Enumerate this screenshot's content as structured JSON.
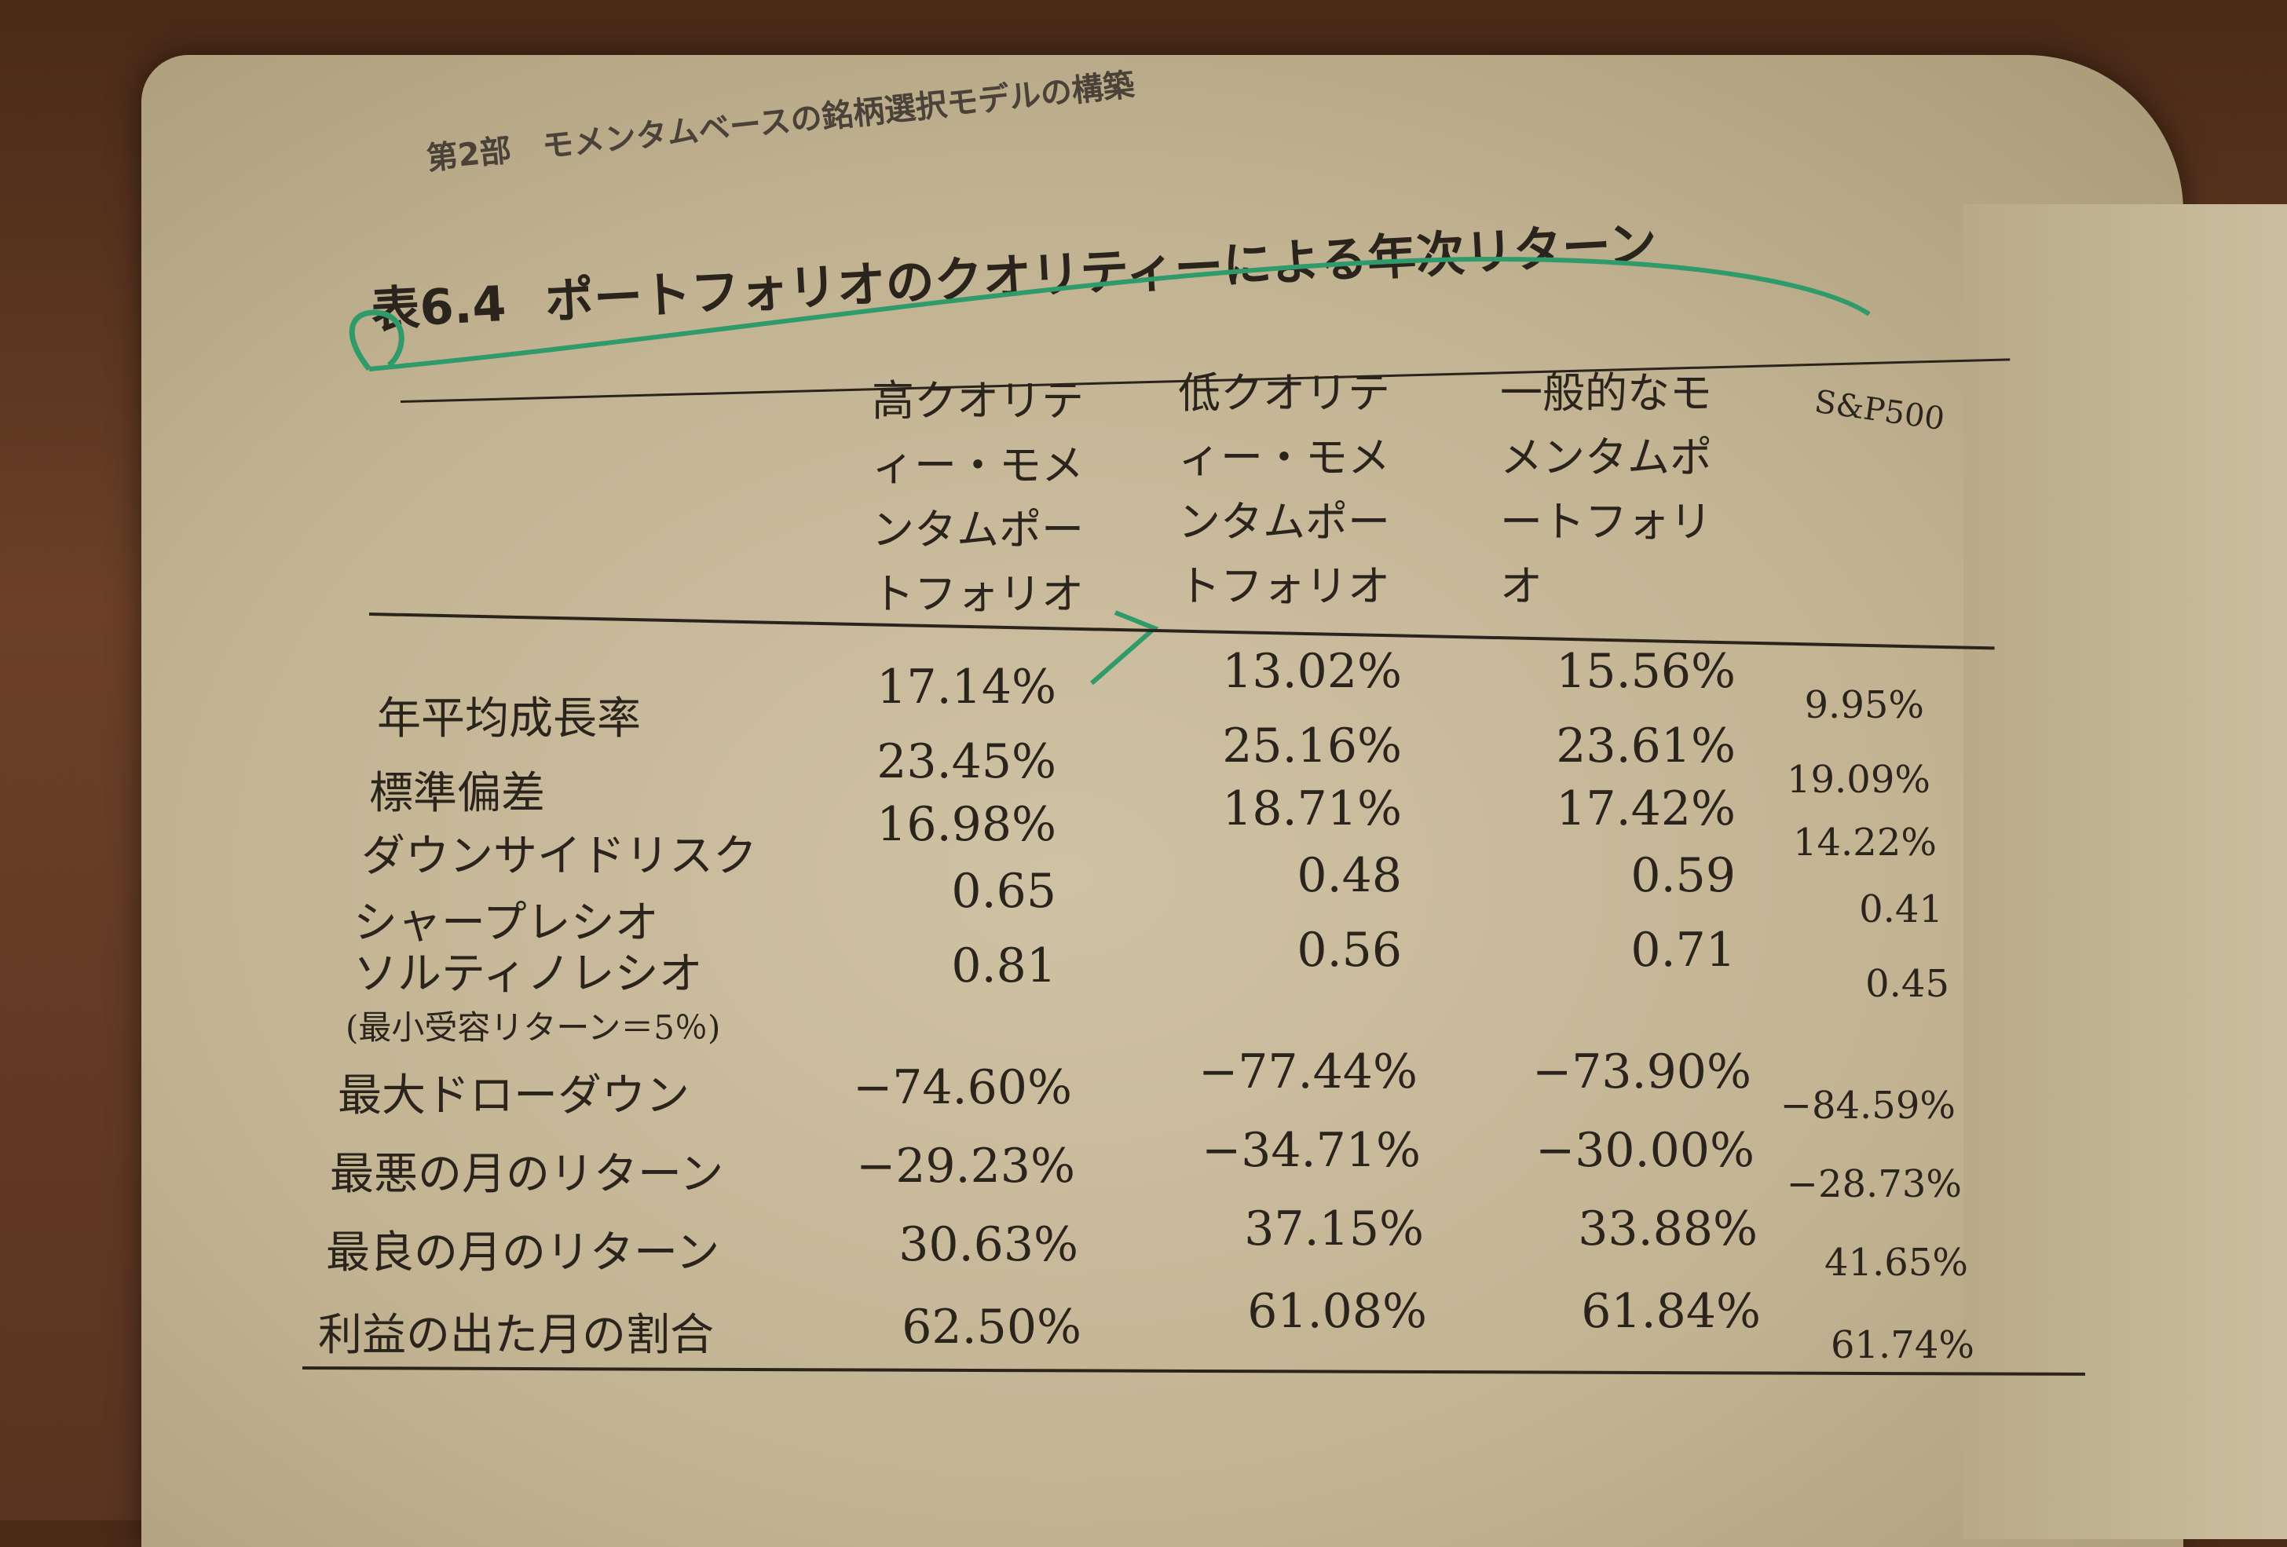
{
  "running_head": {
    "part": "第2部",
    "title": "モメンタムベースの銘柄選択モデルの構築"
  },
  "table": {
    "number": "表6.4",
    "title": "ポートフォリオのクオリティーによる年次リターン",
    "columns": [
      "高クオリティー・モメンタムポートフォリオ",
      "低クオリティー・モメンタムポートフォリオ",
      "一般的なモメンタムポートフォリオ",
      "S&P500"
    ],
    "rows": [
      {
        "label": "年平均成長率",
        "values": [
          "17.14%",
          "13.02%",
          "15.56%",
          "9.95%"
        ]
      },
      {
        "label": "標準偏差",
        "values": [
          "23.45%",
          "25.16%",
          "23.61%",
          "19.09%"
        ]
      },
      {
        "label": "ダウンサイドリスク",
        "values": [
          "16.98%",
          "18.71%",
          "17.42%",
          "14.22%"
        ]
      },
      {
        "label": "シャープレシオ",
        "values": [
          "0.65",
          "0.48",
          "0.59",
          "0.41"
        ]
      },
      {
        "label": "ソルティノレシオ",
        "sublabel": "(最小受容リターン＝5％)",
        "values": [
          "0.81",
          "0.56",
          "0.71",
          "0.45"
        ]
      },
      {
        "label": "最大ドローダウン",
        "values": [
          "−74.60%",
          "−77.44%",
          "−73.90%",
          "−84.59%"
        ]
      },
      {
        "label": "最悪の月のリターン",
        "values": [
          "−29.23%",
          "−34.71%",
          "−30.00%",
          "−28.73%"
        ]
      },
      {
        "label": "最良の月のリターン",
        "values": [
          "30.63%",
          "37.15%",
          "33.88%",
          "41.65%"
        ]
      },
      {
        "label": "利益の出た月の割合",
        "values": [
          "62.50%",
          "61.08%",
          "61.84%",
          "61.74%"
        ]
      }
    ]
  },
  "colors": {
    "pen": "#2f9a6a",
    "ink": "#2a241c",
    "paper": "#c8bb9b"
  }
}
